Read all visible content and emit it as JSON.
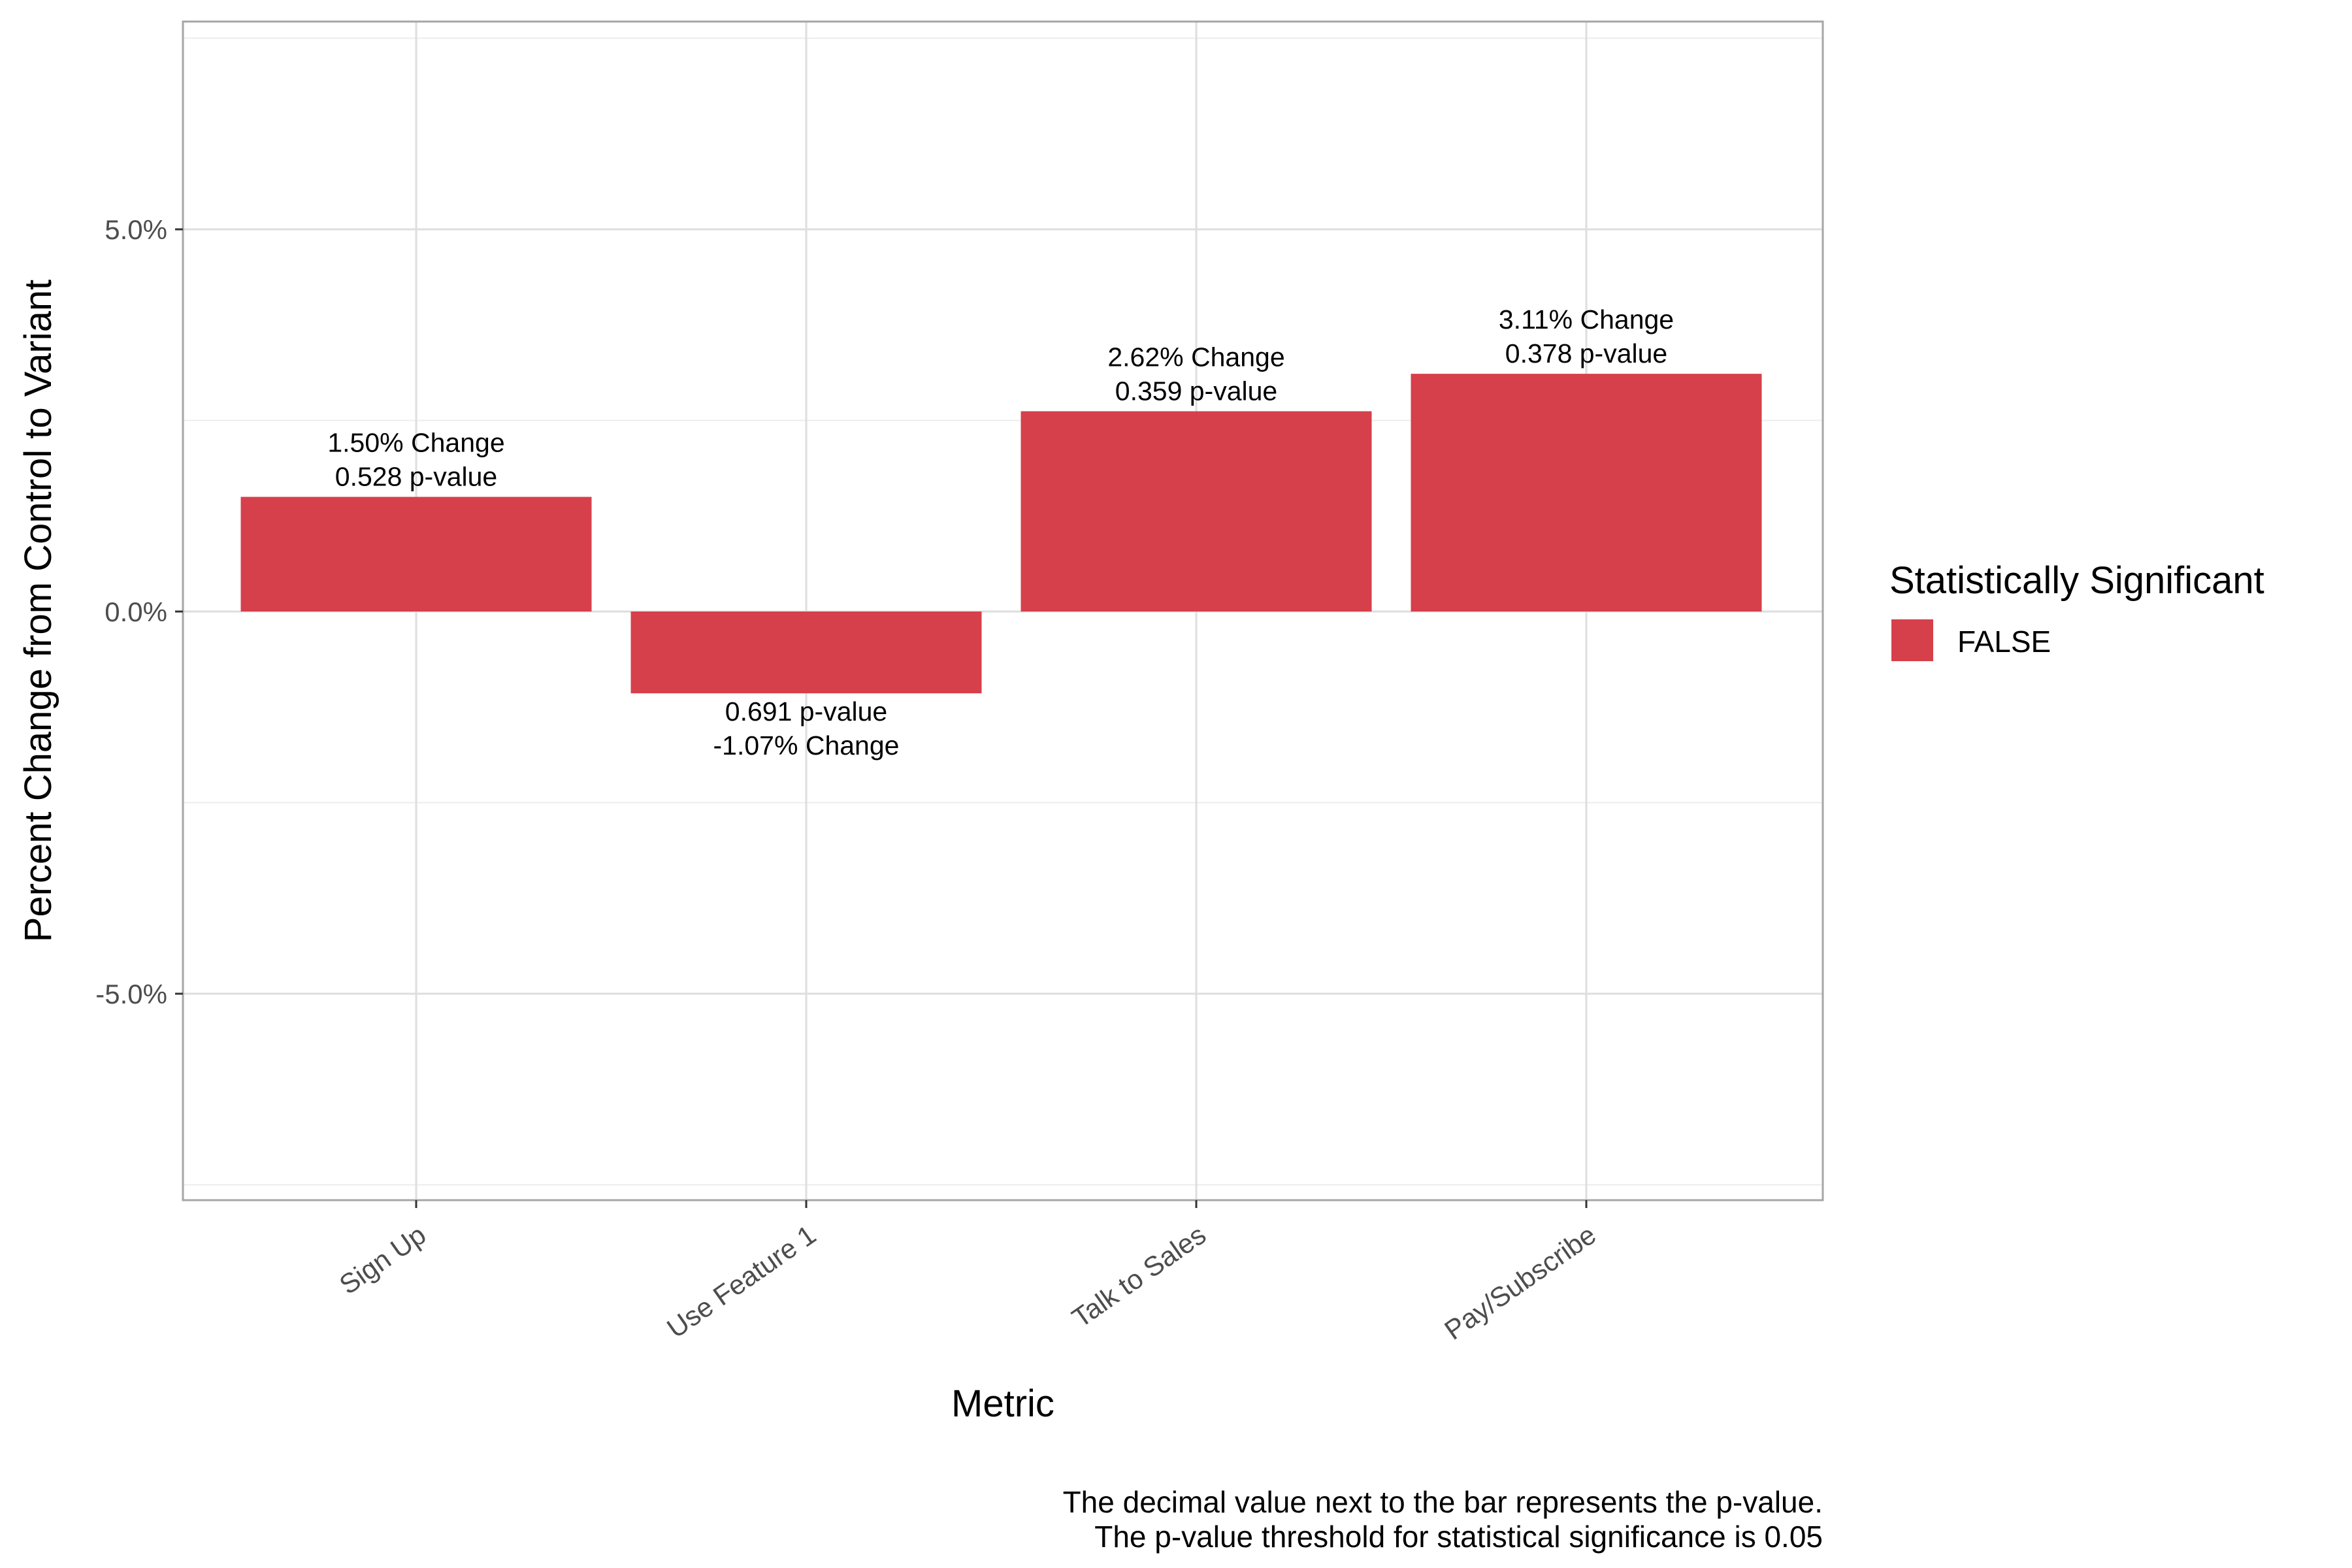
{
  "chart_data": {
    "type": "bar",
    "categories": [
      "Sign Up",
      "Use Feature 1",
      "Talk to Sales",
      "Pay/Subscribe"
    ],
    "values": [
      1.5,
      -1.07,
      2.62,
      3.11
    ],
    "p_values": [
      0.528,
      0.691,
      0.359,
      0.378
    ],
    "bar_labels": [
      [
        "1.50% Change",
        "0.528 p-value"
      ],
      [
        "0.691 p-value",
        "-1.07% Change"
      ],
      [
        "2.62% Change",
        "0.359 p-value"
      ],
      [
        "3.11% Change",
        "0.378 p-value"
      ]
    ],
    "significant": [
      "FALSE",
      "FALSE",
      "FALSE",
      "FALSE"
    ],
    "xlabel": "Metric",
    "ylabel": "Percent Change from Control to Variant",
    "ylim": [
      -7.6,
      7.8
    ],
    "yticks": [
      -5.0,
      0.0,
      5.0
    ],
    "ytick_labels": [
      "-5.0%",
      "0.0%",
      "5.0%"
    ],
    "y_minor_gridlines": [
      -7.5,
      -2.5,
      2.5,
      7.5
    ],
    "grid": true,
    "legend": {
      "title": "Statistically Significant",
      "entries": [
        {
          "label": "FALSE",
          "color": "#d6404a"
        }
      ],
      "placement": "right"
    },
    "caption": [
      "The decimal value next to the bar represents the p-value.",
      "The p-value threshold for statistical significance is 0.05"
    ],
    "colors": {
      "bar": "#d6404a",
      "grid": "#dedede",
      "panel_border": "#a6a6a6"
    }
  }
}
